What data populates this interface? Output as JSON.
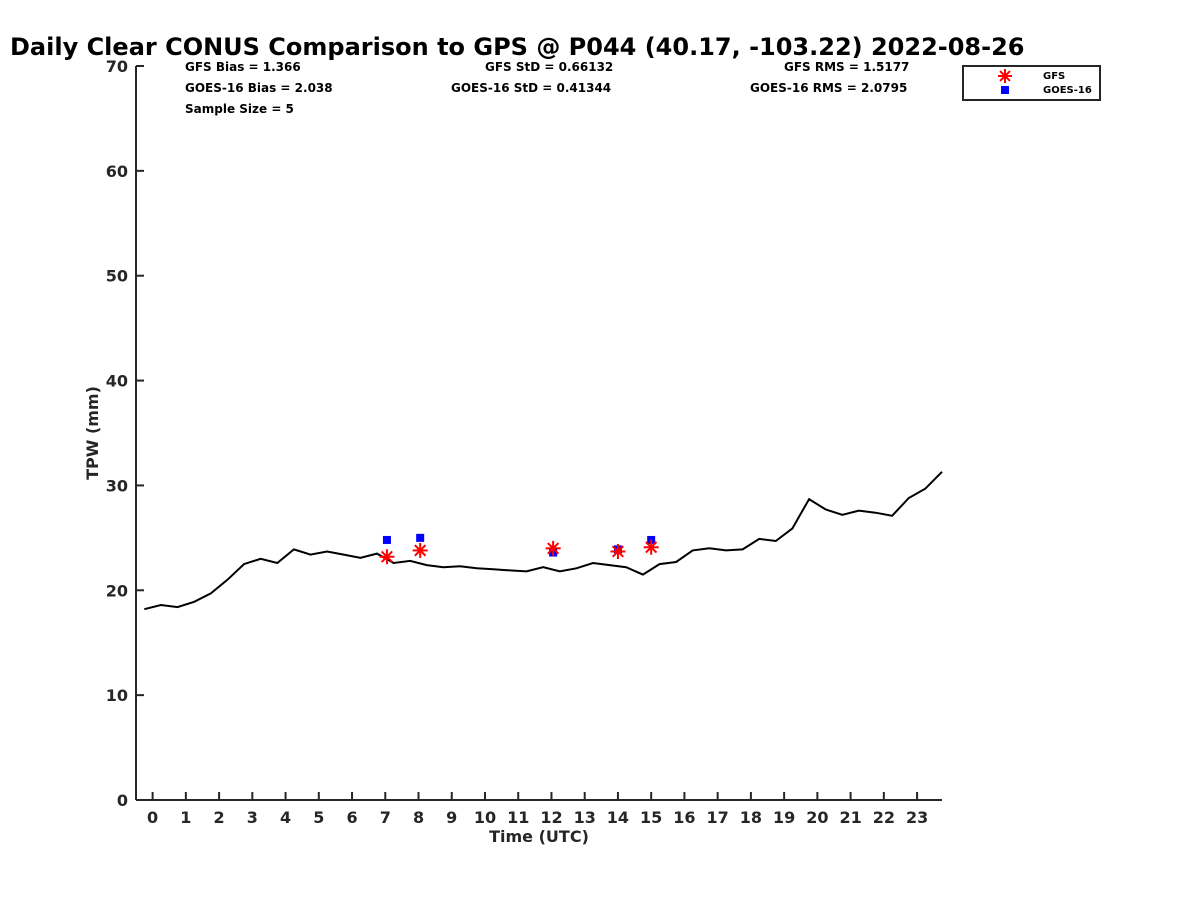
{
  "chart_data": {
    "type": "line",
    "title": "Daily Clear CONUS Comparison to GPS @ P044 (40.17, -103.22) 2022-08-26",
    "xlabel": "Time (UTC)",
    "ylabel": "TPW (mm)",
    "xlim": [
      -0.5,
      23.75
    ],
    "ylim": [
      0,
      70
    ],
    "xticks": [
      0,
      1,
      2,
      3,
      4,
      5,
      6,
      7,
      8,
      9,
      10,
      11,
      12,
      13,
      14,
      15,
      16,
      17,
      18,
      19,
      20,
      21,
      22,
      23
    ],
    "xtick_labels": [
      "0",
      "1",
      "2",
      "3",
      "4",
      "5",
      "6",
      "7",
      "8",
      "9",
      "10",
      "11",
      "12",
      "13",
      "14",
      "15",
      "16",
      "17",
      "18",
      "19",
      "20",
      "21",
      "22",
      "23"
    ],
    "yticks": [
      0,
      10,
      20,
      30,
      40,
      50,
      60,
      70
    ],
    "ytick_labels": [
      "0",
      "10",
      "20",
      "30",
      "40",
      "50",
      "60",
      "70"
    ],
    "grid": false,
    "legend_position": "top-right",
    "stats": {
      "gfs_bias": "GFS Bias = 1.366",
      "goes_bias": "GOES-16 Bias = 2.038",
      "sample_size": "Sample Size = 5",
      "gfs_std": "GFS StD = 0.66132",
      "goes_std": "GOES-16 StD = 0.41344",
      "gfs_rms": "GFS RMS = 1.5177",
      "goes_rms": "GOES-16 RMS = 2.0795"
    },
    "series": [
      {
        "style": "line",
        "color": "#000000",
        "x": [
          -0.25,
          0.25,
          0.75,
          1.25,
          1.75,
          2.25,
          2.75,
          3.25,
          3.75,
          4.25,
          4.75,
          5.25,
          5.75,
          6.25,
          6.75,
          7.25,
          7.75,
          8.25,
          8.75,
          9.25,
          9.75,
          10.25,
          10.75,
          11.25,
          11.75,
          12.25,
          12.75,
          13.25,
          13.75,
          14.25,
          14.75,
          15.25,
          15.75,
          16.25,
          16.75,
          17.25,
          17.75,
          18.25,
          18.75,
          19.25,
          19.75,
          20.25,
          20.75,
          21.25,
          21.75,
          22.25,
          22.75,
          23.25,
          23.75
        ],
        "y": [
          18.2,
          18.6,
          18.4,
          18.9,
          19.7,
          21.0,
          22.5,
          23.0,
          22.6,
          23.9,
          23.4,
          23.7,
          23.4,
          23.1,
          23.5,
          22.6,
          22.8,
          22.4,
          22.2,
          22.3,
          22.1,
          22.0,
          21.9,
          21.8,
          22.2,
          21.8,
          22.1,
          22.6,
          22.4,
          22.2,
          21.5,
          22.5,
          22.7,
          23.8,
          24.0,
          23.8,
          23.9,
          24.9,
          24.7,
          25.9,
          28.7,
          27.7,
          27.2,
          27.6,
          27.4,
          27.1,
          28.8,
          29.7,
          31.3
        ]
      },
      {
        "name": "GFS",
        "style": "asterisk",
        "color": "#ff0000",
        "x": [
          7.05,
          8.05,
          12.05,
          14.0,
          15.0
        ],
        "y": [
          23.2,
          23.8,
          24.0,
          23.7,
          24.1
        ]
      },
      {
        "name": "GOES-16",
        "style": "square",
        "color": "#0000ff",
        "x": [
          7.05,
          8.05,
          12.05,
          14.0,
          15.0
        ],
        "y": [
          24.8,
          25.0,
          23.6,
          23.9,
          24.8
        ]
      }
    ]
  }
}
